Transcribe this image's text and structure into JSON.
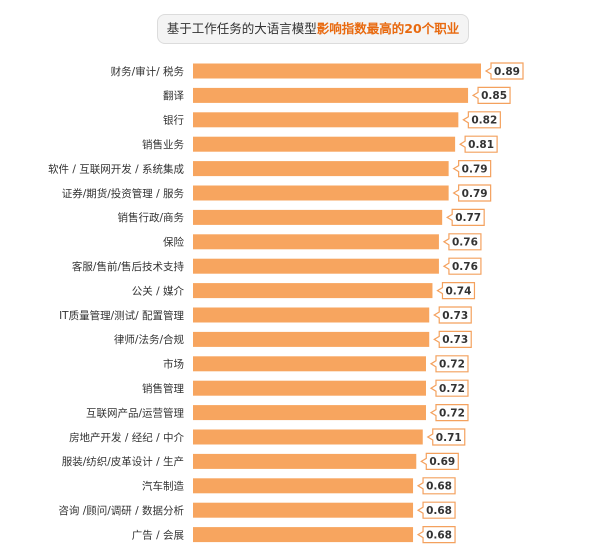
{
  "title": {
    "prefix": "基于工作任务的大语言模型",
    "highlight": "影响指数最高的20个职业"
  },
  "colors": {
    "bar": "#f7a55f",
    "highlight": "#e86a10",
    "value_box_border": "#f4a15e"
  },
  "chart_data": {
    "type": "bar",
    "orientation": "horizontal",
    "title": "基于工作任务的大语言模型影响指数最高的20个职业",
    "categories": [
      "财务/审计/ 税务",
      "翻译",
      "银行",
      "销售业务",
      "软件 / 互联网开发 / 系统集成",
      "证券/期货/投资管理 / 服务",
      "销售行政/商务",
      "保险",
      "客服/售前/售后技术支持",
      "公关 / 媒介",
      "IT质量管理/测试/ 配置管理",
      "律师/法务/合规",
      "市场",
      "销售管理",
      "互联网产品/运营管理",
      "房地产开发 / 经纪 / 中介",
      "服装/纺织/皮革设计 / 生产",
      "汽车制造",
      "咨询 /顾问/调研 / 数据分析",
      "广告 / 会展"
    ],
    "values": [
      0.89,
      0.85,
      0.82,
      0.81,
      0.79,
      0.79,
      0.77,
      0.76,
      0.76,
      0.74,
      0.73,
      0.73,
      0.72,
      0.72,
      0.72,
      0.71,
      0.69,
      0.68,
      0.68,
      0.68
    ],
    "value_labels": [
      "0.89",
      "0.85",
      "0.82",
      "0.81",
      "0.79",
      "0.79",
      "0.77",
      "0.76",
      "0.76",
      "0.74",
      "0.73",
      "0.73",
      "0.72",
      "0.72",
      "0.72",
      "0.71",
      "0.69",
      "0.68",
      "0.68",
      "0.68"
    ],
    "xlabel": "",
    "ylabel": "",
    "xlim": [
      0,
      0.89
    ],
    "grid": false,
    "legend": "none"
  }
}
